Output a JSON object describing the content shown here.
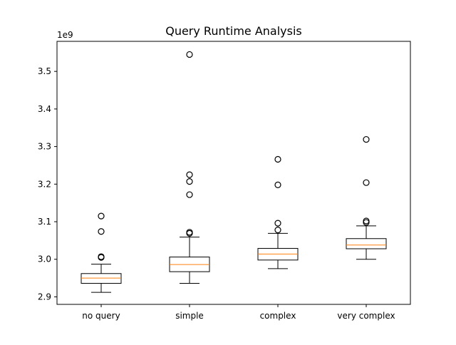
{
  "chart_data": {
    "type": "box",
    "title": "Query Runtime Analysis",
    "xlabel": "",
    "ylabel": "",
    "y_offset_label": "1e9",
    "ylim": [
      2.88,
      3.58
    ],
    "yticks": [
      2.9,
      3.0,
      3.1,
      3.2,
      3.3,
      3.4,
      3.5
    ],
    "ytick_labels": [
      "2.9",
      "3.0",
      "3.1",
      "3.2",
      "3.3",
      "3.4",
      "3.5"
    ],
    "grid": false,
    "legend": "none",
    "colors": {
      "box": "#000000",
      "median": "#ff7f0e",
      "flier": "#000000",
      "background": "#ffffff"
    },
    "categories": [
      "no query",
      "simple",
      "complex",
      "very complex"
    ],
    "boxes": [
      {
        "category": "no query",
        "whisker_low": 2.912,
        "q1": 2.936,
        "median": 2.95,
        "q3": 2.962,
        "whisker_high": 2.987,
        "fliers": [
          3.005,
          3.007,
          3.074,
          3.115
        ]
      },
      {
        "category": "simple",
        "whisker_low": 2.936,
        "q1": 2.967,
        "median": 2.986,
        "q3": 3.006,
        "whisker_high": 3.059,
        "fliers": [
          3.069,
          3.072,
          3.172,
          3.207,
          3.225,
          3.545
        ]
      },
      {
        "category": "complex",
        "whisker_low": 2.975,
        "q1": 2.998,
        "median": 3.014,
        "q3": 3.029,
        "whisker_high": 3.069,
        "fliers": [
          3.078,
          3.096,
          3.198,
          3.266
        ]
      },
      {
        "category": "very complex",
        "whisker_low": 3.0,
        "q1": 3.028,
        "median": 3.038,
        "q3": 3.055,
        "whisker_high": 3.089,
        "fliers": [
          3.098,
          3.102,
          3.204,
          3.319
        ]
      }
    ]
  }
}
